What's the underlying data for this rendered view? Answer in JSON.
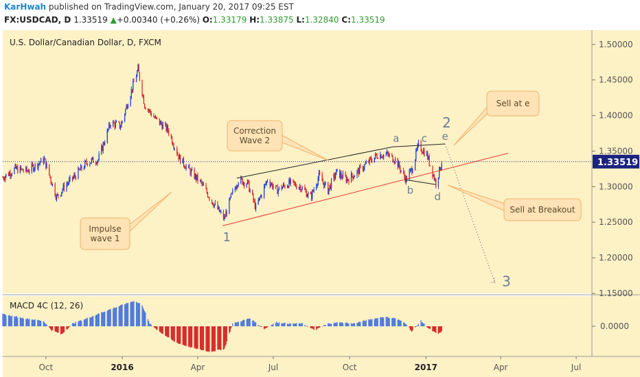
{
  "header": {
    "author": "KarHwah",
    "published": "published on TradingView.com, January 20, 2017 09:25 EST",
    "symbol": "FX:USDCAD, D",
    "last": "1.33519",
    "change": "+0.00340 (+0.26%)",
    "open_label": "O:",
    "open": "1.33179",
    "high_label": "H:",
    "high": "1.33875",
    "low_label": "L:",
    "low": "1.32840",
    "close_label": "C:",
    "close": "1.33519"
  },
  "colors": {
    "background": "#fdf1c6",
    "up_candle": "#1c3fd6",
    "down_candle": "#d62728",
    "trendline": "#e53935",
    "price_line": "#1a237e",
    "price_badge": "#1a237e",
    "macd_up": "#4a78e0",
    "macd_down": "#d62728",
    "callout_fill": "#fde3b6",
    "callout_stroke": "#f0b46a",
    "wave_label": "#6b7f92"
  },
  "chart_data": {
    "type": "candlestick",
    "title": "U.S. Dollar/Canadian Dollar, D, FXCM",
    "ylim": [
      1.15,
      1.52
    ],
    "yticks": [
      "1.50000",
      "1.45000",
      "1.40000",
      "1.35000",
      "1.30000",
      "1.25000",
      "1.20000",
      "1.15000"
    ],
    "ytick_values": [
      1.5,
      1.45,
      1.4,
      1.35,
      1.3,
      1.25,
      1.2,
      1.15
    ],
    "xticks": [
      "Oct",
      "2016",
      "Apr",
      "Jul",
      "Oct",
      "2017",
      "Apr",
      "Jul"
    ],
    "xtick_bold": [
      false,
      true,
      false,
      false,
      false,
      true,
      false,
      false
    ],
    "xtick_dates": [
      "2015-10-01",
      "2016-01-01",
      "2016-04-01",
      "2016-07-01",
      "2016-10-01",
      "2017-01-01",
      "2017-04-01",
      "2017-07-01"
    ],
    "x_range": [
      "2015-08-10",
      "2017-07-20"
    ],
    "current_price": 1.33519,
    "current_price_label": "1.33519",
    "price_path": [
      [
        "2015-08-10",
        1.313
      ],
      [
        "2015-08-25",
        1.325
      ],
      [
        "2015-09-08",
        1.322
      ],
      [
        "2015-09-29",
        1.338
      ],
      [
        "2015-10-14",
        1.285
      ],
      [
        "2015-10-23",
        1.3
      ],
      [
        "2015-11-05",
        1.315
      ],
      [
        "2015-11-20",
        1.335
      ],
      [
        "2015-12-03",
        1.338
      ],
      [
        "2015-12-18",
        1.39
      ],
      [
        "2015-12-30",
        1.385
      ],
      [
        "2016-01-08",
        1.42
      ],
      [
        "2016-01-20",
        1.465
      ],
      [
        "2016-01-28",
        1.415
      ],
      [
        "2016-02-10",
        1.395
      ],
      [
        "2016-02-25",
        1.38
      ],
      [
        "2016-03-10",
        1.34
      ],
      [
        "2016-03-24",
        1.32
      ],
      [
        "2016-04-05",
        1.305
      ],
      [
        "2016-04-18",
        1.28
      ],
      [
        "2016-05-03",
        1.255
      ],
      [
        "2016-05-11",
        1.285
      ],
      [
        "2016-05-20",
        1.31
      ],
      [
        "2016-05-31",
        1.305
      ],
      [
        "2016-06-10",
        1.27
      ],
      [
        "2016-06-24",
        1.31
      ],
      [
        "2016-07-05",
        1.295
      ],
      [
        "2016-07-20",
        1.305
      ],
      [
        "2016-08-03",
        1.3
      ],
      [
        "2016-08-15",
        1.285
      ],
      [
        "2016-08-25",
        1.315
      ],
      [
        "2016-09-05",
        1.295
      ],
      [
        "2016-09-15",
        1.32
      ],
      [
        "2016-09-28",
        1.31
      ],
      [
        "2016-10-10",
        1.32
      ],
      [
        "2016-10-24",
        1.335
      ],
      [
        "2016-11-04",
        1.345
      ],
      [
        "2016-11-15",
        1.345
      ],
      [
        "2016-11-25",
        1.338
      ],
      [
        "2016-12-08",
        1.31
      ],
      [
        "2016-12-15",
        1.325
      ],
      [
        "2016-12-23",
        1.358
      ],
      [
        "2017-01-02",
        1.345
      ],
      [
        "2017-01-09",
        1.32
      ],
      [
        "2017-01-13",
        1.305
      ],
      [
        "2017-01-20",
        1.335
      ]
    ],
    "trendlines": [
      {
        "name": "upper-triangle-line",
        "points": [
          [
            "2016-05-18",
            1.312
          ],
          [
            "2016-11-22",
            1.356
          ]
        ],
        "color": "#222222"
      },
      {
        "name": "upper-triangle-line-2",
        "points": [
          [
            "2016-11-22",
            1.356
          ],
          [
            "2017-01-24",
            1.36
          ]
        ],
        "color": "#222222"
      },
      {
        "name": "lower-support-line",
        "points": [
          [
            "2016-05-01",
            1.245
          ],
          [
            "2017-04-10",
            1.347
          ]
        ],
        "color": "#e53935"
      },
      {
        "name": "lower-triangle-line",
        "points": [
          [
            "2016-12-06",
            1.31
          ],
          [
            "2017-01-13",
            1.303
          ]
        ],
        "color": "#222222"
      }
    ],
    "projection": [
      [
        "2017-01-24",
        1.36
      ],
      [
        "2017-03-25",
        1.165
      ]
    ],
    "wave_labels": [
      {
        "text": "1",
        "date": "2016-05-06",
        "price": 1.223,
        "size": 18
      },
      {
        "text": "2",
        "date": "2017-01-26",
        "price": 1.383,
        "size": 20
      },
      {
        "text": "3",
        "date": "2017-04-08",
        "price": 1.16,
        "size": 20
      },
      {
        "text": "a",
        "date": "2016-11-26",
        "price": 1.363,
        "size": 15
      },
      {
        "text": "b",
        "date": "2016-12-13",
        "price": 1.29,
        "size": 15
      },
      {
        "text": "c",
        "date": "2016-12-30",
        "price": 1.363,
        "size": 15
      },
      {
        "text": "d",
        "date": "2017-01-15",
        "price": 1.281,
        "size": 15
      },
      {
        "text": "e",
        "date": "2017-01-24",
        "price": 1.366,
        "size": 15
      }
    ],
    "callouts": [
      {
        "lines": [
          "Correction",
          "Wave 2"
        ],
        "anchor": [
          "2016-08-20",
          1.332
        ],
        "tail": "right"
      },
      {
        "lines": [
          "Impulse",
          "wave 1"
        ],
        "anchor": [
          "2016-03-25",
          1.293
        ],
        "tail": "right"
      },
      {
        "lines": [
          "Sell at e"
        ],
        "anchor": [
          "2017-01-26",
          1.362
        ],
        "tail": "left"
      },
      {
        "lines": [
          "Sell at Breakout"
        ],
        "anchor": [
          "2017-01-25",
          1.32
        ],
        "tail": "left"
      }
    ],
    "macd": {
      "title": "MACD 4C (12, 26)",
      "ylim": [
        -0.045,
        0.045
      ],
      "ytick_label": "0.0000",
      "path": [
        [
          "2015-08-10",
          0.018
        ],
        [
          "2015-09-05",
          0.012
        ],
        [
          "2015-09-28",
          0.008
        ],
        [
          "2015-10-08",
          -0.006
        ],
        [
          "2015-10-20",
          -0.012
        ],
        [
          "2015-11-02",
          0.004
        ],
        [
          "2015-11-20",
          0.012
        ],
        [
          "2015-12-10",
          0.022
        ],
        [
          "2015-12-28",
          0.03
        ],
        [
          "2016-01-15",
          0.038
        ],
        [
          "2016-01-25",
          0.032
        ],
        [
          "2016-02-03",
          0.004
        ],
        [
          "2016-02-15",
          -0.008
        ],
        [
          "2016-03-05",
          -0.024
        ],
        [
          "2016-03-25",
          -0.032
        ],
        [
          "2016-04-15",
          -0.038
        ],
        [
          "2016-05-03",
          -0.034
        ],
        [
          "2016-05-13",
          0.004
        ],
        [
          "2016-06-03",
          0.012
        ],
        [
          "2016-06-20",
          -0.004
        ],
        [
          "2016-07-05",
          0.006
        ],
        [
          "2016-07-20",
          0.004
        ],
        [
          "2016-08-05",
          0.004
        ],
        [
          "2016-08-20",
          -0.006
        ],
        [
          "2016-09-05",
          0.004
        ],
        [
          "2016-09-20",
          0.006
        ],
        [
          "2016-10-05",
          0.004
        ],
        [
          "2016-10-25",
          0.01
        ],
        [
          "2016-11-10",
          0.014
        ],
        [
          "2016-11-25",
          0.012
        ],
        [
          "2016-12-08",
          0.004
        ],
        [
          "2016-12-15",
          -0.008
        ],
        [
          "2016-12-26",
          0.008
        ],
        [
          "2017-01-05",
          -0.004
        ],
        [
          "2017-01-15",
          -0.012
        ],
        [
          "2017-01-20",
          -0.008
        ]
      ]
    }
  }
}
